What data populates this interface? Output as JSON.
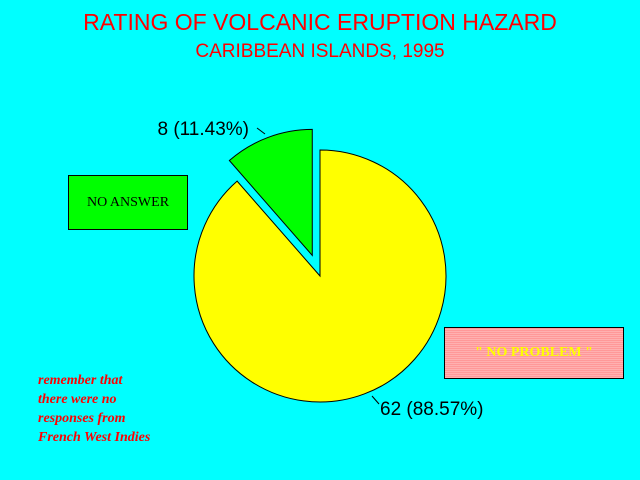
{
  "chart_data": {
    "type": "pie",
    "title": "RATING OF VOLCANIC ERUPTION HAZARD",
    "subtitle": "CARIBBEAN ISLANDS, 1995",
    "slices": [
      {
        "label": "\"  NO PROBLEM \"",
        "value": 62,
        "percent": 88.57,
        "color": "#FFFF00",
        "display": "62  (88.57%)"
      },
      {
        "label": "NO ANSWER",
        "value": 8,
        "percent": 11.43,
        "color": "#00FF00",
        "display": "8  (11.43%)",
        "exploded": true
      }
    ],
    "legend": {
      "no_answer": "NO ANSWER",
      "no_problem": "\"  NO PROBLEM \""
    }
  },
  "note": {
    "lines": [
      "remember that",
      "there were no",
      "responses from",
      "French West Indies"
    ]
  },
  "colors": {
    "background": "#00FFFF",
    "title": "#FF0000"
  }
}
